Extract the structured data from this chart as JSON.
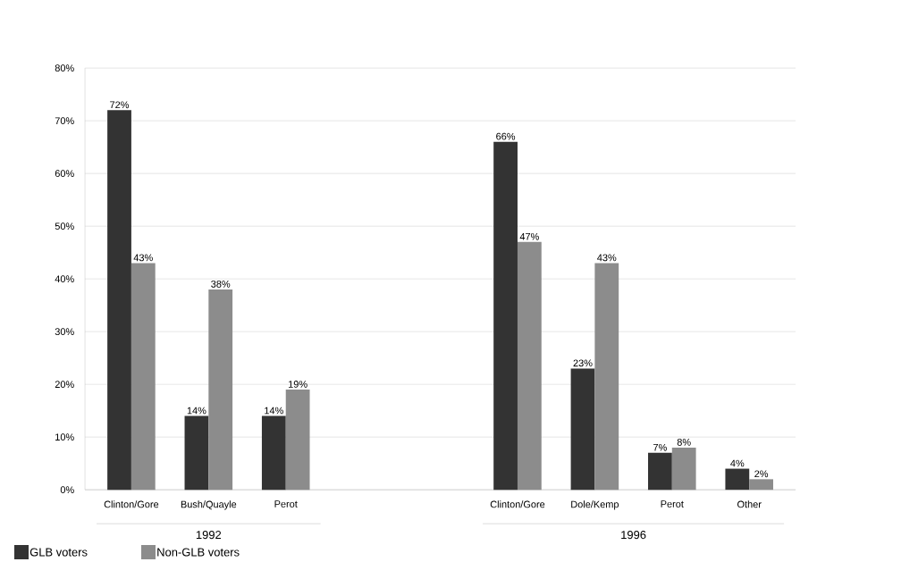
{
  "chart_data": {
    "type": "bar",
    "categories": [
      "Clinton/Gore",
      "Bush/Quayle",
      "Perot",
      null,
      null,
      "Clinton/Gore",
      "Dole/Kemp",
      "Perot",
      "Other"
    ],
    "series": [
      {
        "name": "GLB voters",
        "color": "#333333",
        "values": [
          72,
          14,
          14,
          null,
          null,
          66,
          23,
          7,
          4
        ],
        "value_labels": [
          "72%",
          "14%",
          "14%",
          null,
          null,
          "66%",
          "23%",
          "7%",
          "4%"
        ]
      },
      {
        "name": "Non-GLB voters",
        "color": "#8c8c8c",
        "values": [
          43,
          38,
          19,
          null,
          null,
          47,
          43,
          8,
          2
        ],
        "value_labels": [
          "43%",
          "38%",
          "19%",
          null,
          null,
          "47%",
          "43%",
          "8%",
          "2%"
        ]
      }
    ],
    "ylim": [
      0,
      80
    ],
    "yticks": [
      {
        "value": 0,
        "label": "0%"
      },
      {
        "value": 10,
        "label": "10%"
      },
      {
        "value": 20,
        "label": "20%"
      },
      {
        "value": 30,
        "label": "30%"
      },
      {
        "value": 40,
        "label": "40%"
      },
      {
        "value": 50,
        "label": "50%"
      },
      {
        "value": 60,
        "label": "60%"
      },
      {
        "value": 70,
        "label": "70%"
      },
      {
        "value": 80,
        "label": "80%"
      }
    ],
    "annotations": [
      "1992",
      "1996"
    ],
    "grid": "y",
    "legend": "bottom left"
  }
}
